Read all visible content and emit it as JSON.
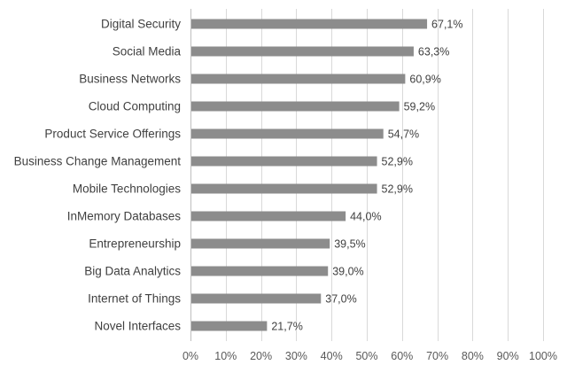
{
  "chart_data": {
    "type": "bar",
    "orientation": "horizontal",
    "categories": [
      "Digital Security",
      "Social Media",
      "Business Networks",
      "Cloud Computing",
      "Product Service Offerings ",
      "Business Change Management ",
      "Mobile Technologies",
      "InMemory Databases",
      "Entrepreneurship",
      "Big Data Analytics",
      "Internet of Things",
      "Novel Interfaces"
    ],
    "values": [
      67.1,
      63.3,
      60.9,
      59.2,
      54.7,
      52.9,
      52.9,
      44.0,
      39.5,
      39.0,
      37.0,
      21.7
    ],
    "value_labels": [
      "67,1%",
      "63,3%",
      "60,9%",
      "59,2%",
      "54,7%",
      "52,9%",
      "52,9%",
      "44,0%",
      "39,5%",
      "39,0%",
      "37,0%",
      "21,7%"
    ],
    "xlim": [
      0,
      100
    ],
    "ticks": [
      0,
      10,
      20,
      30,
      40,
      50,
      60,
      70,
      80,
      90,
      100
    ],
    "tick_labels": [
      "0%",
      "10%",
      "20%",
      "30%",
      "40%",
      "50%",
      "60%",
      "70%",
      "80%",
      "90%",
      "100%"
    ],
    "title": "",
    "xlabel": "",
    "ylabel": "",
    "grid": true,
    "legend": "none",
    "bar_color": "#8c8c8c",
    "grid_color": "#d9d9d9",
    "text_color": "#404040"
  }
}
